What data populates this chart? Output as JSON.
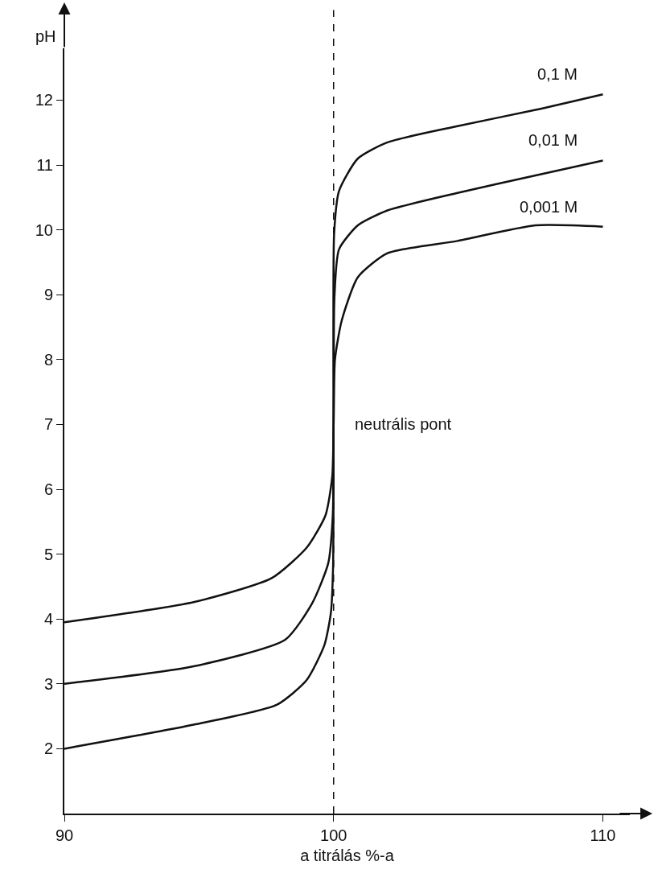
{
  "chart_data": {
    "type": "line",
    "xlabel": "a titrálás %-a",
    "ylabel": "pH",
    "xlim": [
      90,
      111
    ],
    "ylim": [
      1,
      12.8
    ],
    "xticks": [
      90,
      100,
      110
    ],
    "yticks": [
      2,
      3,
      4,
      5,
      6,
      7,
      8,
      9,
      10,
      11,
      12
    ],
    "grid": false,
    "legend": false,
    "marker": "none",
    "line_style": "solid",
    "series": [
      {
        "name": "0,1 M",
        "color": "#111111",
        "x": [
          90,
          94.8,
          97.9,
          99,
          99.66,
          99.9,
          99.98,
          100,
          100.02,
          100.2,
          100.9,
          102,
          104.6,
          107.5,
          110
        ],
        "values": [
          2.0,
          2.37,
          2.68,
          3.06,
          3.6,
          4.1,
          4.8,
          7,
          9.95,
          10.6,
          11.1,
          11.35,
          11.6,
          11.85,
          12.09
        ]
      },
      {
        "name": "0,01 M",
        "color": "#111111",
        "x": [
          90,
          94.8,
          98.2,
          99.2,
          99.8,
          99.97,
          100,
          100.03,
          100.2,
          100.9,
          102,
          104.6,
          107.5,
          110
        ],
        "values": [
          3.0,
          3.27,
          3.68,
          4.24,
          4.86,
          5.6,
          7,
          8.96,
          9.7,
          10.07,
          10.3,
          10.57,
          10.84,
          11.07
        ]
      },
      {
        "name": "0,001 M",
        "color": "#111111",
        "x": [
          90,
          94.8,
          97.7,
          99,
          99.7,
          99.95,
          100,
          100.05,
          100.3,
          100.9,
          102,
          104.6,
          107.5,
          110
        ],
        "values": [
          3.95,
          4.26,
          4.63,
          5.1,
          5.6,
          6.2,
          7,
          8.0,
          8.6,
          9.27,
          9.64,
          9.83,
          10.07,
          10.05
        ]
      }
    ],
    "ref_lines": [
      {
        "axis": "x",
        "value": 100,
        "line_style": "dashed",
        "color": "#111111"
      }
    ],
    "annotations": [
      {
        "text": "neutrális pont",
        "x": 100,
        "y": 7
      }
    ]
  }
}
